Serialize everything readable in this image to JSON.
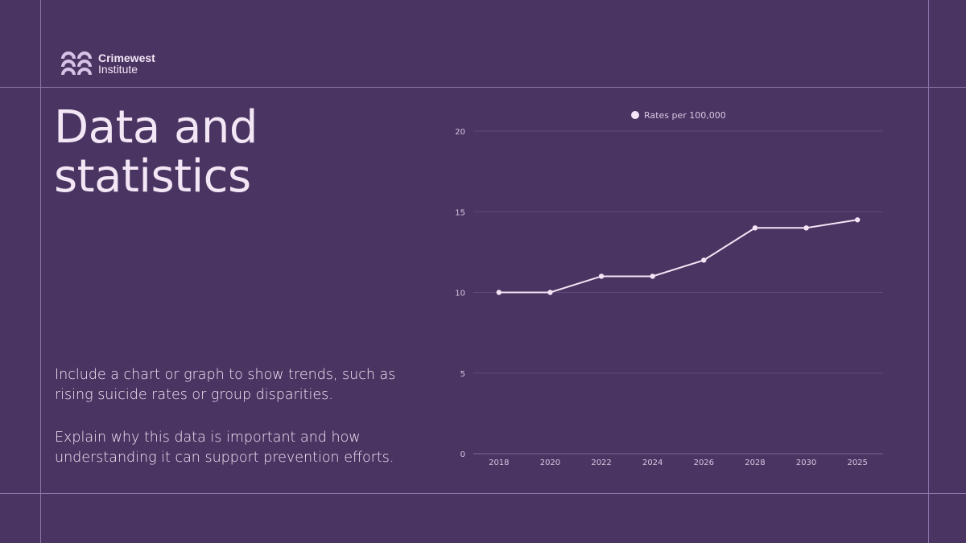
{
  "logo": {
    "name": "Crimewest",
    "sub": "Institute"
  },
  "title_line1": "Data and",
  "title_line2": "statistics",
  "paragraphs": [
    "Include a chart or graph to show trends, such as rising suicide rates or group disparities.",
    "Explain why this data is important and how understanding it can support prevention efforts."
  ],
  "chart_data": {
    "type": "line",
    "title": "",
    "xlabel": "",
    "ylabel": "",
    "categories": [
      "2018",
      "2020",
      "2022",
      "2024",
      "2026",
      "2028",
      "2030",
      "2025"
    ],
    "series": [
      {
        "name": "Rates per 100,000",
        "values": [
          10,
          10,
          11,
          11,
          12,
          14,
          14,
          14.5
        ]
      }
    ],
    "ylim": [
      0,
      20
    ],
    "yticks": [
      0,
      5,
      10,
      15,
      20
    ],
    "grid": true,
    "legend": "top-center",
    "colors": {
      "line": "#f5e4f6",
      "grid": "#5e4a7a",
      "text": "#d9c8e2"
    }
  }
}
